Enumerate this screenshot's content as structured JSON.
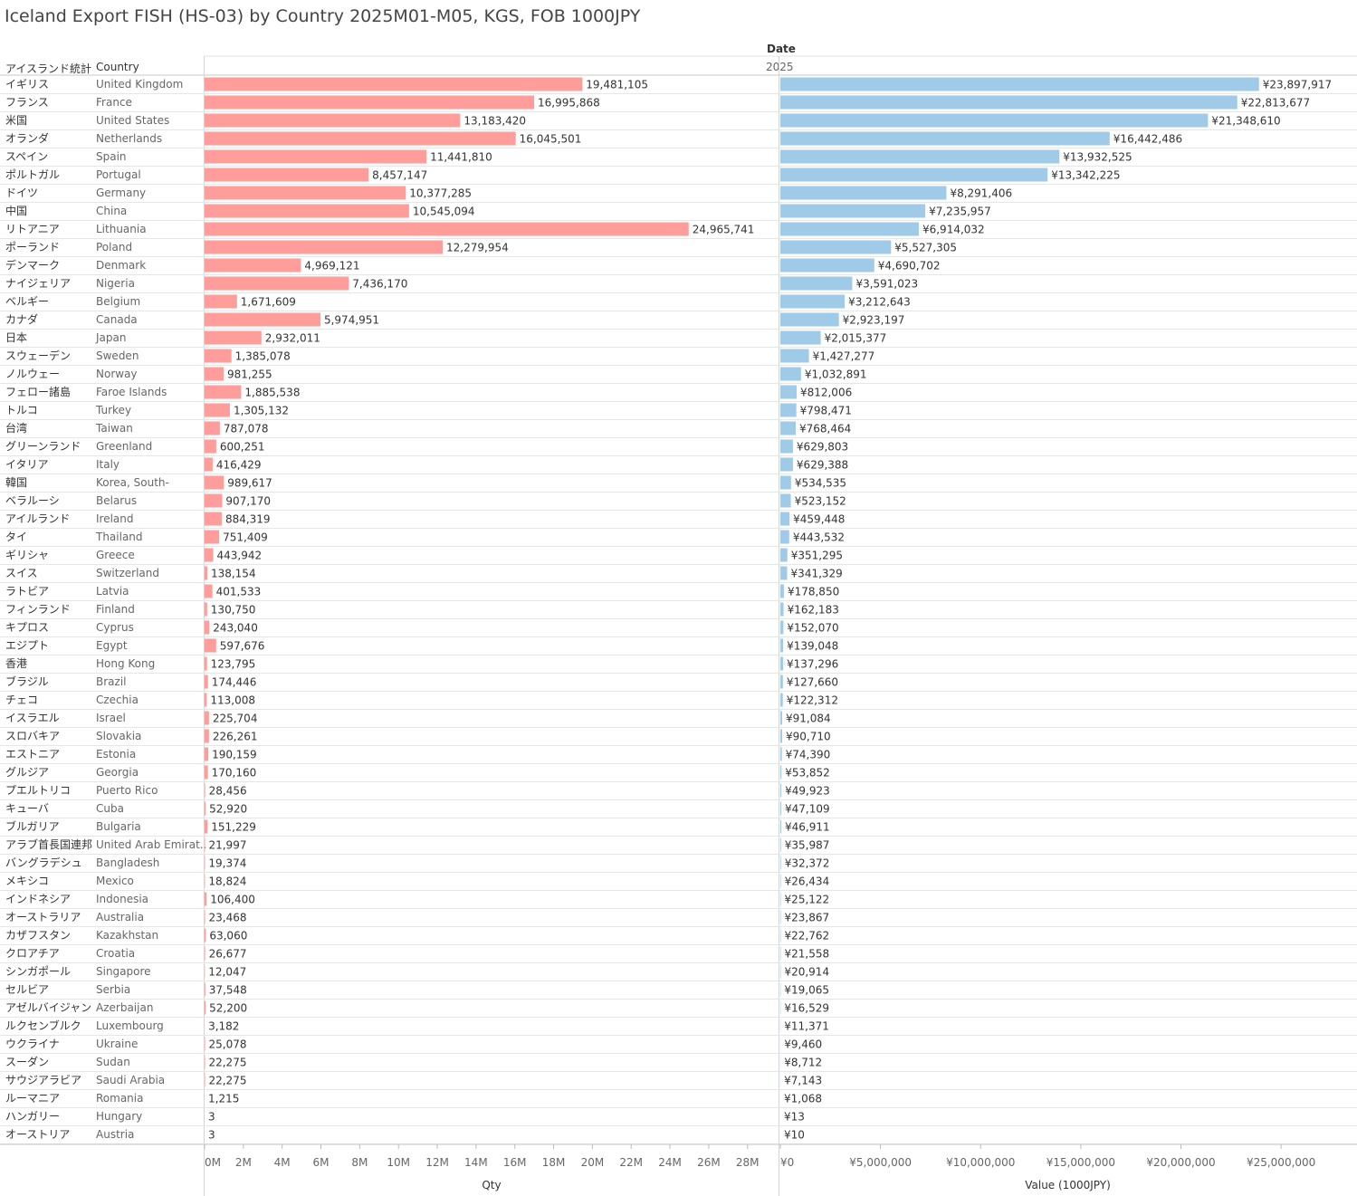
{
  "title": "Iceland Export FISH (HS-03) by Country 2025M01-M05, KGS, FOB 1000JPY",
  "header": {
    "date_label": "Date",
    "year_label": "2025",
    "col_jp": "アイスランド統計",
    "col_country": "Country"
  },
  "chart_data": {
    "type": "bar",
    "orientation": "horizontal",
    "title": "Iceland Export FISH (HS-03) by Country 2025M01-M05, KGS, FOB 1000JPY",
    "colors": {
      "qty": "#ff9d9a",
      "value": "#a0cbe8"
    },
    "rows": [
      {
        "jp": "イギリス",
        "country": "United Kingdom",
        "qty": 19481105,
        "value": 23897917
      },
      {
        "jp": "フランス",
        "country": "France",
        "qty": 16995868,
        "value": 22813677
      },
      {
        "jp": "米国",
        "country": "United States",
        "qty": 13183420,
        "value": 21348610
      },
      {
        "jp": "オランダ",
        "country": "Netherlands",
        "qty": 16045501,
        "value": 16442486
      },
      {
        "jp": "スペイン",
        "country": "Spain",
        "qty": 11441810,
        "value": 13932525
      },
      {
        "jp": "ポルトガル",
        "country": "Portugal",
        "qty": 8457147,
        "value": 13342225
      },
      {
        "jp": "ドイツ",
        "country": "Germany",
        "qty": 10377285,
        "value": 8291406
      },
      {
        "jp": "中国",
        "country": "China",
        "qty": 10545094,
        "value": 7235957
      },
      {
        "jp": "リトアニア",
        "country": "Lithuania",
        "qty": 24965741,
        "value": 6914032
      },
      {
        "jp": "ポーランド",
        "country": "Poland",
        "qty": 12279954,
        "value": 5527305
      },
      {
        "jp": "デンマーク",
        "country": "Denmark",
        "qty": 4969121,
        "value": 4690702
      },
      {
        "jp": "ナイジェリア",
        "country": "Nigeria",
        "qty": 7436170,
        "value": 3591023
      },
      {
        "jp": "ベルギー",
        "country": "Belgium",
        "qty": 1671609,
        "value": 3212643
      },
      {
        "jp": "カナダ",
        "country": "Canada",
        "qty": 5974951,
        "value": 2923197
      },
      {
        "jp": "日本",
        "country": "Japan",
        "qty": 2932011,
        "value": 2015377
      },
      {
        "jp": "スウェーデン",
        "country": "Sweden",
        "qty": 1385078,
        "value": 1427277
      },
      {
        "jp": "ノルウェー",
        "country": "Norway",
        "qty": 981255,
        "value": 1032891
      },
      {
        "jp": "フェロー諸島",
        "country": "Faroe Islands",
        "qty": 1885538,
        "value": 812006
      },
      {
        "jp": "トルコ",
        "country": "Turkey",
        "qty": 1305132,
        "value": 798471
      },
      {
        "jp": "台湾",
        "country": "Taiwan",
        "qty": 787078,
        "value": 768464
      },
      {
        "jp": "グリーンランド",
        "country": "Greenland",
        "qty": 600251,
        "value": 629803
      },
      {
        "jp": "イタリア",
        "country": "Italy",
        "qty": 416429,
        "value": 629388
      },
      {
        "jp": "韓国",
        "country": "Korea, South-",
        "qty": 989617,
        "value": 534535
      },
      {
        "jp": "ベラルーシ",
        "country": "Belarus",
        "qty": 907170,
        "value": 523152
      },
      {
        "jp": "アイルランド",
        "country": "Ireland",
        "qty": 884319,
        "value": 459448
      },
      {
        "jp": "タイ",
        "country": "Thailand",
        "qty": 751409,
        "value": 443532
      },
      {
        "jp": "ギリシャ",
        "country": "Greece",
        "qty": 443942,
        "value": 351295
      },
      {
        "jp": "スイス",
        "country": "Switzerland",
        "qty": 138154,
        "value": 341329
      },
      {
        "jp": "ラトビア",
        "country": "Latvia",
        "qty": 401533,
        "value": 178850
      },
      {
        "jp": "フィンランド",
        "country": "Finland",
        "qty": 130750,
        "value": 162183
      },
      {
        "jp": "キプロス",
        "country": "Cyprus",
        "qty": 243040,
        "value": 152070
      },
      {
        "jp": "エジプト",
        "country": "Egypt",
        "qty": 597676,
        "value": 139048
      },
      {
        "jp": "香港",
        "country": "Hong Kong",
        "qty": 123795,
        "value": 137296
      },
      {
        "jp": "ブラジル",
        "country": "Brazil",
        "qty": 174446,
        "value": 127660
      },
      {
        "jp": "チェコ",
        "country": "Czechia",
        "qty": 113008,
        "value": 122312
      },
      {
        "jp": "イスラエル",
        "country": "Israel",
        "qty": 225704,
        "value": 91084
      },
      {
        "jp": "スロバキア",
        "country": "Slovakia",
        "qty": 226261,
        "value": 90710
      },
      {
        "jp": "エストニア",
        "country": "Estonia",
        "qty": 190159,
        "value": 74390
      },
      {
        "jp": "グルジア",
        "country": "Georgia",
        "qty": 170160,
        "value": 53852
      },
      {
        "jp": "プエルトリコ",
        "country": "Puerto Rico",
        "qty": 28456,
        "value": 49923
      },
      {
        "jp": "キューバ",
        "country": "Cuba",
        "qty": 52920,
        "value": 47109
      },
      {
        "jp": "ブルガリア",
        "country": "Bulgaria",
        "qty": 151229,
        "value": 46911
      },
      {
        "jp": "アラブ首長国連邦",
        "country": "United Arab Emirat..",
        "qty": 21997,
        "value": 35987
      },
      {
        "jp": "バングラデシュ",
        "country": "Bangladesh",
        "qty": 19374,
        "value": 32372
      },
      {
        "jp": "メキシコ",
        "country": "Mexico",
        "qty": 18824,
        "value": 26434
      },
      {
        "jp": "インドネシア",
        "country": "Indonesia",
        "qty": 106400,
        "value": 25122
      },
      {
        "jp": "オーストラリア",
        "country": "Australia",
        "qty": 23468,
        "value": 23867
      },
      {
        "jp": "カザフスタン",
        "country": "Kazakhstan",
        "qty": 63060,
        "value": 22762
      },
      {
        "jp": "クロアチア",
        "country": "Croatia",
        "qty": 26677,
        "value": 21558
      },
      {
        "jp": "シンガポール",
        "country": "Singapore",
        "qty": 12047,
        "value": 20914
      },
      {
        "jp": "セルビア",
        "country": "Serbia",
        "qty": 37548,
        "value": 19065
      },
      {
        "jp": "アゼルバイジャン",
        "country": "Azerbaijan",
        "qty": 52200,
        "value": 16529
      },
      {
        "jp": "ルクセンブルク",
        "country": "Luxembourg",
        "qty": 3182,
        "value": 11371
      },
      {
        "jp": "ウクライナ",
        "country": "Ukraine",
        "qty": 25078,
        "value": 9460
      },
      {
        "jp": "スーダン",
        "country": "Sudan",
        "qty": 22275,
        "value": 8712
      },
      {
        "jp": "サウジアラビア",
        "country": "Saudi Arabia",
        "qty": 22275,
        "value": 7143
      },
      {
        "jp": "ルーマニア",
        "country": "Romania",
        "qty": 1215,
        "value": 1068
      },
      {
        "jp": "ハンガリー",
        "country": "Hungary",
        "qty": 3,
        "value": 13
      },
      {
        "jp": "オーストリア",
        "country": "Austria",
        "qty": 3,
        "value": 10
      }
    ],
    "qty_axis": {
      "label": "Qty",
      "domain": [
        0,
        29600000
      ],
      "ticks": [
        0,
        2000000,
        4000000,
        6000000,
        8000000,
        10000000,
        12000000,
        14000000,
        16000000,
        18000000,
        20000000,
        22000000,
        24000000,
        26000000,
        28000000
      ],
      "tick_labels": [
        "0M",
        "2M",
        "4M",
        "6M",
        "8M",
        "10M",
        "12M",
        "14M",
        "16M",
        "18M",
        "20M",
        "22M",
        "24M",
        "26M",
        "28M"
      ]
    },
    "value_axis": {
      "label": "Value (1000JPY)",
      "domain": [
        0,
        28700000
      ],
      "ticks": [
        0,
        5000000,
        10000000,
        15000000,
        20000000,
        25000000
      ],
      "tick_labels": [
        "¥0",
        "¥5,000,000",
        "¥10,000,000",
        "¥15,000,000",
        "¥20,000,000",
        "¥25,000,000"
      ]
    },
    "value_prefix": "¥",
    "grid": false
  }
}
